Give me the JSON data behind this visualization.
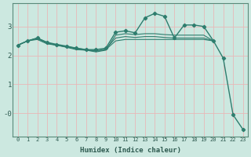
{
  "title": "",
  "xlabel": "Humidex (Indice chaleur)",
  "ylabel": "",
  "bg_color": "#cce8e0",
  "line_color": "#2e7d6e",
  "grid_color": "#e8b8b8",
  "xlim": [
    -0.5,
    23.5
  ],
  "ylim": [
    -0.8,
    3.8
  ],
  "yticks": [
    0,
    1,
    2,
    3
  ],
  "ytick_labels": [
    "-0",
    "1",
    "2",
    "3"
  ],
  "xticks": [
    0,
    1,
    2,
    3,
    4,
    5,
    6,
    7,
    8,
    9,
    10,
    11,
    12,
    13,
    14,
    15,
    16,
    17,
    18,
    19,
    20,
    21,
    22,
    23
  ],
  "series": [
    {
      "x": [
        0,
        1,
        2,
        3,
        4,
        5,
        6,
        7,
        8,
        9,
        10,
        11,
        12,
        13,
        14,
        15,
        16,
        17,
        18,
        19,
        20
      ],
      "y": [
        2.35,
        2.5,
        2.6,
        2.45,
        2.35,
        2.3,
        2.25,
        2.2,
        2.15,
        2.2,
        2.5,
        2.55,
        2.55,
        2.55,
        2.55,
        2.55,
        2.55,
        2.55,
        2.55,
        2.55,
        2.5
      ],
      "marker": false
    },
    {
      "x": [
        0,
        1,
        2,
        3,
        4,
        5,
        6,
        7,
        8,
        9,
        10,
        11,
        12,
        13,
        14,
        15,
        16,
        17,
        18,
        19,
        20
      ],
      "y": [
        2.35,
        2.5,
        2.55,
        2.4,
        2.35,
        2.28,
        2.2,
        2.18,
        2.15,
        2.22,
        2.6,
        2.65,
        2.62,
        2.65,
        2.65,
        2.62,
        2.6,
        2.6,
        2.6,
        2.6,
        2.5
      ],
      "marker": false
    },
    {
      "x": [
        0,
        1,
        2,
        3,
        4,
        5,
        6,
        7,
        8,
        9,
        10,
        11,
        12,
        13,
        14,
        15,
        16,
        17,
        18,
        19,
        20
      ],
      "y": [
        2.35,
        2.5,
        2.58,
        2.42,
        2.35,
        2.3,
        2.22,
        2.18,
        2.12,
        2.18,
        2.7,
        2.75,
        2.72,
        2.75,
        2.75,
        2.72,
        2.7,
        2.7,
        2.7,
        2.7,
        2.5
      ],
      "marker": false
    },
    {
      "x": [
        0,
        1,
        2,
        3,
        4,
        5,
        6,
        7,
        8,
        9,
        10,
        11,
        12,
        13,
        14,
        15,
        16,
        17,
        18,
        19,
        20,
        21,
        22,
        23
      ],
      "y": [
        2.35,
        2.5,
        2.6,
        2.45,
        2.38,
        2.32,
        2.25,
        2.2,
        2.2,
        2.25,
        2.8,
        2.85,
        2.78,
        3.3,
        3.45,
        3.35,
        2.6,
        3.05,
        3.05,
        3.0,
        2.5,
        1.9,
        -0.05,
        -0.55
      ],
      "marker": true
    }
  ]
}
